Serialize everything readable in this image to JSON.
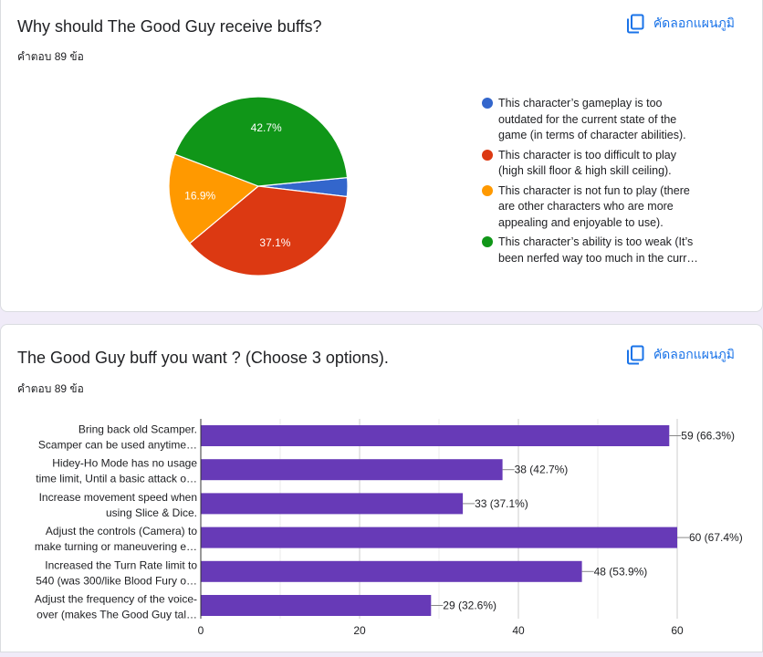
{
  "pie_card": {
    "title": "Why should The Good Guy receive buffs?",
    "response_count": "คำตอบ 89 ข้อ",
    "copy_chart_label": "คัดลอกแผนภูมิ",
    "copy_icon": "copy-icon"
  },
  "bar_card": {
    "title": "The Good Guy buff you want ? (Choose 3 options).",
    "response_count": "คำตอบ 89 ข้อ",
    "copy_chart_label": "คัดลอกแผนภูมิ",
    "copy_icon": "copy-icon"
  },
  "chart_data": [
    {
      "type": "pie",
      "slices": [
        {
          "label": "This character's gameplay is too outdated for the current state of the game (in terms of character abilities).",
          "value": 3.4,
          "color": "#3366cc"
        },
        {
          "label": "This character is too difficult to play (high skill floor & high skill ceiling).",
          "value": 37.1,
          "display": "37.1%",
          "color": "#dc3912"
        },
        {
          "label": "This character is not fun to play (there are other characters who are more appealing and enjoyable to use).",
          "value": 16.9,
          "display": "16.9%",
          "color": "#ff9900"
        },
        {
          "label": "This character's ability is too weak (It's been nerfed way too much in the curr…",
          "value": 42.7,
          "display": "42.7%",
          "color": "#109618"
        }
      ],
      "legend_lines": [
        [
          "This character’s gameplay is too",
          "outdated for the current state of the",
          "game (in terms of character abilities)."
        ],
        [
          "This character is too difficult to play",
          "(high skill floor & high skill ceiling)."
        ],
        [
          "This character is not fun to play (there",
          "are other characters who are more",
          "appealing and enjoyable to use)."
        ],
        [
          "This character’s ability is too weak (It’s",
          "been nerfed way too much in the curr…"
        ]
      ]
    },
    {
      "type": "bar",
      "orientation": "horizontal",
      "bar_color": "#673ab7",
      "categories": [
        [
          "Bring back old Scamper.",
          "Scamper can be used anytime…"
        ],
        [
          "Hidey-Ho Mode has no usage",
          "time limit, Until a basic attack o…"
        ],
        [
          "Increase movement speed when",
          "using Slice & Dice."
        ],
        [
          "Adjust the controls (Camera) to",
          "make turning or maneuvering e…"
        ],
        [
          "Increased the Turn Rate limit to",
          "540 (was 300/like Blood Fury o…"
        ],
        [
          "Adjust the frequency of the voice-",
          "over (makes The Good Guy tal…"
        ]
      ],
      "values": [
        59,
        38,
        33,
        60,
        48,
        29
      ],
      "value_labels": [
        "59 (66.3%)",
        "38 (42.7%)",
        "33 (37.1%)",
        "60 (67.4%)",
        "48 (53.9%)",
        "29 (32.6%)"
      ],
      "xlim": [
        0,
        60
      ],
      "xticks": [
        "0",
        "20",
        "40",
        "60"
      ],
      "grid": true
    }
  ]
}
